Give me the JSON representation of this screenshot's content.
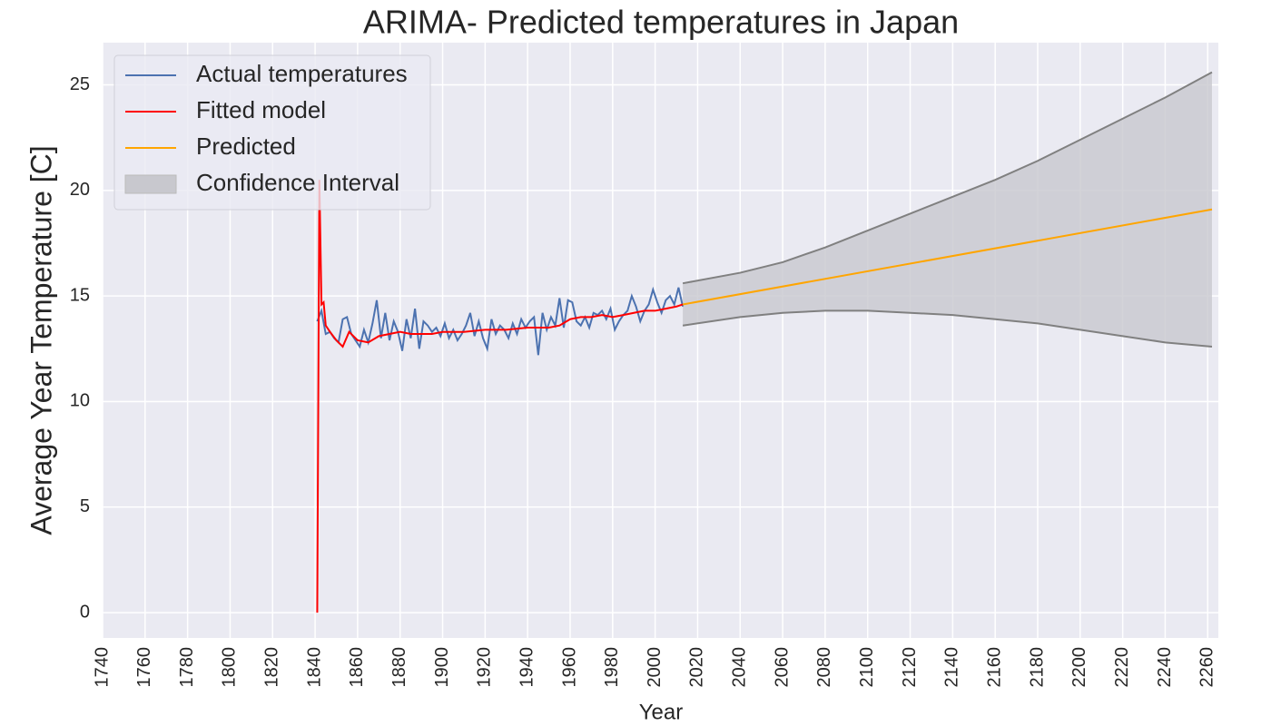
{
  "chart_data": {
    "type": "line",
    "title": "ARIMA- Predicted temperatures in Japan",
    "xlabel": "Year",
    "ylabel": "Average Year Temperature [C]",
    "xlim": [
      1740,
      2265
    ],
    "ylim": [
      -1.2,
      27
    ],
    "xticks": [
      1740,
      1760,
      1780,
      1800,
      1820,
      1840,
      1860,
      1880,
      1900,
      1920,
      1940,
      1960,
      1980,
      2000,
      2020,
      2040,
      2060,
      2080,
      2100,
      2120,
      2140,
      2160,
      2180,
      2200,
      2220,
      2240,
      2260
    ],
    "yticks": [
      0,
      5,
      10,
      15,
      20,
      25
    ],
    "grid": true,
    "legend": "upper left",
    "series": [
      {
        "name": "Actual temperatures",
        "color": "#4c72b0",
        "x": [
          1841,
          1843,
          1845,
          1847,
          1849,
          1851,
          1853,
          1855,
          1857,
          1859,
          1861,
          1863,
          1865,
          1867,
          1869,
          1871,
          1873,
          1875,
          1877,
          1879,
          1881,
          1883,
          1885,
          1887,
          1889,
          1891,
          1893,
          1895,
          1897,
          1899,
          1901,
          1903,
          1905,
          1907,
          1909,
          1911,
          1913,
          1915,
          1917,
          1919,
          1921,
          1923,
          1925,
          1927,
          1929,
          1931,
          1933,
          1935,
          1937,
          1939,
          1941,
          1943,
          1945,
          1947,
          1949,
          1951,
          1953,
          1955,
          1957,
          1959,
          1961,
          1963,
          1965,
          1967,
          1969,
          1971,
          1973,
          1975,
          1977,
          1979,
          1981,
          1983,
          1985,
          1987,
          1989,
          1991,
          1993,
          1995,
          1997,
          1999,
          2001,
          2003,
          2005,
          2007,
          2009,
          2011,
          2013
        ],
        "values": [
          13.8,
          14.3,
          13.2,
          13.3,
          13.0,
          12.8,
          13.9,
          14.0,
          13.2,
          12.9,
          12.6,
          13.4,
          12.8,
          13.7,
          14.8,
          13.0,
          14.2,
          12.9,
          13.8,
          13.3,
          12.4,
          13.9,
          13.0,
          14.4,
          12.5,
          13.8,
          13.6,
          13.3,
          13.5,
          13.1,
          13.7,
          13.0,
          13.4,
          12.9,
          13.2,
          13.6,
          14.2,
          13.1,
          13.8,
          13.0,
          12.5,
          13.9,
          13.2,
          13.6,
          13.4,
          13.0,
          13.7,
          13.2,
          13.9,
          13.5,
          13.8,
          14.0,
          12.2,
          14.2,
          13.4,
          14.0,
          13.6,
          14.9,
          13.5,
          14.8,
          14.7,
          13.8,
          13.6,
          14.0,
          13.5,
          14.2,
          14.1,
          14.3,
          13.9,
          14.4,
          13.4,
          13.8,
          14.1,
          14.3,
          15.0,
          14.5,
          13.8,
          14.3,
          14.6,
          15.3,
          14.7,
          14.2,
          14.8,
          15.0,
          14.6,
          15.4,
          14.5
        ]
      },
      {
        "name": "Fitted model",
        "color": "#ff0000",
        "x": [
          1841,
          1842,
          1843,
          1844,
          1845,
          1847,
          1850,
          1853,
          1856,
          1860,
          1865,
          1870,
          1875,
          1880,
          1885,
          1890,
          1895,
          1900,
          1910,
          1920,
          1930,
          1940,
          1950,
          1955,
          1960,
          1965,
          1970,
          1975,
          1980,
          1985,
          1990,
          1995,
          2000,
          2005,
          2010,
          2013
        ],
        "values": [
          0,
          20.5,
          14.6,
          14.7,
          13.6,
          13.3,
          12.9,
          12.6,
          13.3,
          12.9,
          12.8,
          13.1,
          13.2,
          13.3,
          13.2,
          13.2,
          13.2,
          13.3,
          13.3,
          13.4,
          13.4,
          13.5,
          13.5,
          13.6,
          13.9,
          14.0,
          14.0,
          14.1,
          14.0,
          14.1,
          14.2,
          14.3,
          14.3,
          14.4,
          14.5,
          14.6
        ]
      },
      {
        "name": "Predicted",
        "color": "#ffa500",
        "x": [
          2013,
          2262
        ],
        "values": [
          14.6,
          19.1
        ]
      }
    ],
    "confidence_interval": {
      "name": "Confidence Interval",
      "color": "#c8c8ce",
      "edge_color": "#808080",
      "x": [
        2013,
        2040,
        2060,
        2080,
        2100,
        2120,
        2140,
        2160,
        2180,
        2200,
        2220,
        2240,
        2262
      ],
      "upper": [
        15.6,
        16.1,
        16.6,
        17.3,
        18.1,
        18.9,
        19.7,
        20.5,
        21.4,
        22.4,
        23.4,
        24.4,
        25.6
      ],
      "lower": [
        13.6,
        14.0,
        14.2,
        14.3,
        14.3,
        14.2,
        14.1,
        13.9,
        13.7,
        13.4,
        13.1,
        12.8,
        12.6
      ]
    }
  }
}
